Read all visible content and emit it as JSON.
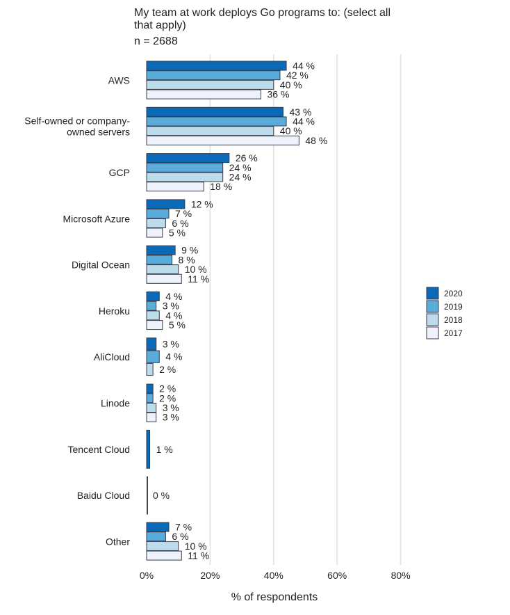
{
  "chart_data": {
    "type": "bar",
    "orientation": "horizontal",
    "title": "My team at work deploys Go programs to: (select all that apply)",
    "subtitle": "n = 2688",
    "xlabel": "% of respondents",
    "ylabel": "",
    "xlim": [
      0,
      80
    ],
    "xticks": [
      0,
      20,
      40,
      60,
      80
    ],
    "xtick_labels": [
      "0%",
      "20%",
      "40%",
      "60%",
      "80%"
    ],
    "grid": true,
    "legend_position": "right",
    "categories": [
      [
        "AWS"
      ],
      [
        "Self-owned or company-",
        "owned servers"
      ],
      [
        "GCP"
      ],
      [
        "Microsoft Azure"
      ],
      [
        "Digital Ocean"
      ],
      [
        "Heroku"
      ],
      [
        "AliCloud"
      ],
      [
        "Linode"
      ],
      [
        "Tencent Cloud"
      ],
      [
        "Baidu Cloud"
      ],
      [
        "Other"
      ]
    ],
    "series": [
      {
        "name": "2020",
        "color": "#0a6ab8",
        "values": [
          44,
          43,
          26,
          12,
          9,
          4,
          3,
          2,
          1,
          0,
          7
        ]
      },
      {
        "name": "2019",
        "color": "#5aaddb",
        "values": [
          42,
          44,
          24,
          7,
          8,
          3,
          4,
          2,
          null,
          null,
          6
        ]
      },
      {
        "name": "2018",
        "color": "#bcdcec",
        "values": [
          40,
          40,
          24,
          6,
          10,
          4,
          2,
          3,
          null,
          null,
          10
        ]
      },
      {
        "name": "2017",
        "color": "#eef3fb",
        "values": [
          36,
          48,
          18,
          5,
          11,
          5,
          null,
          3,
          null,
          null,
          11
        ]
      }
    ],
    "label_suffix": " %"
  }
}
